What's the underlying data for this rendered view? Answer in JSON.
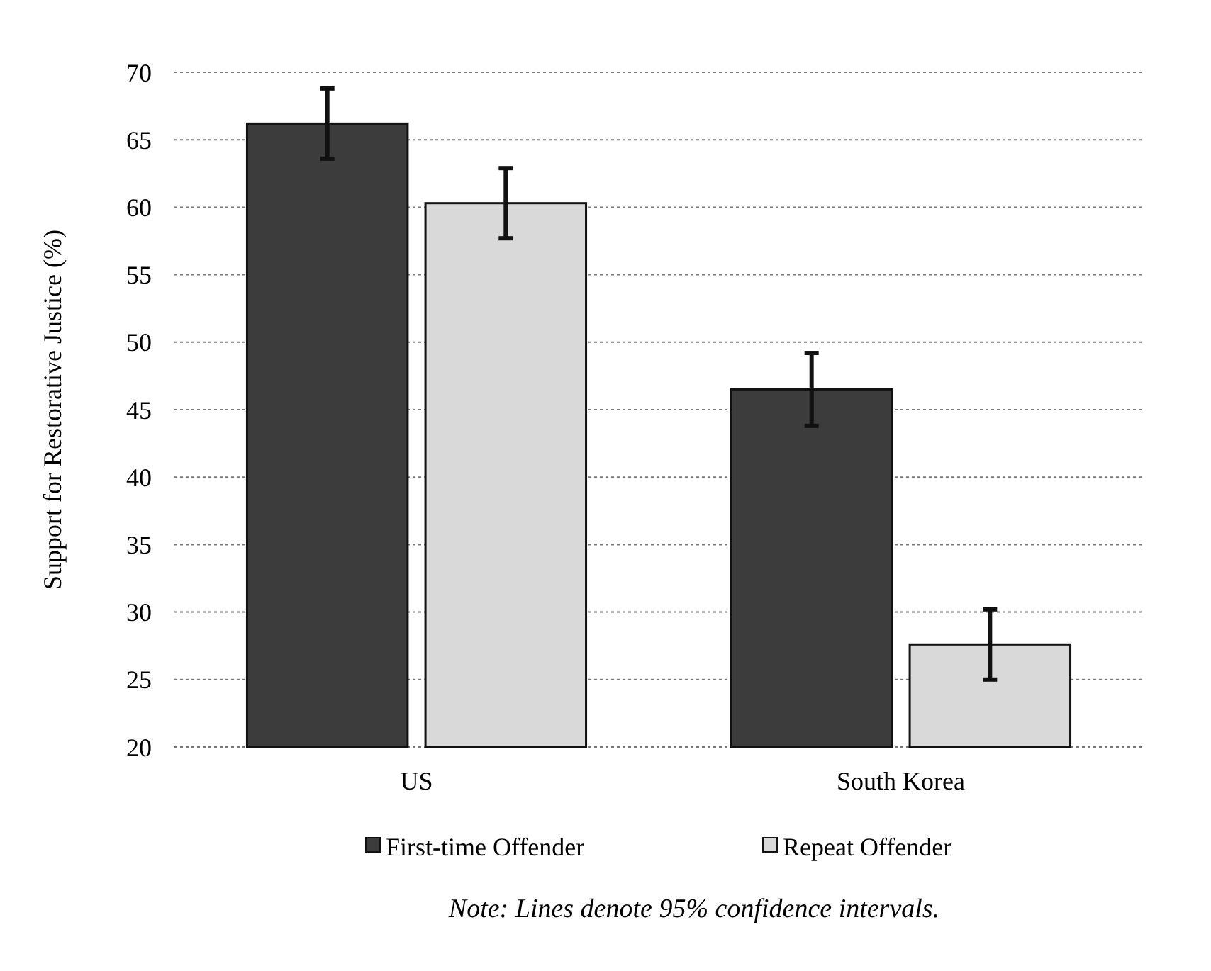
{
  "chart_data": {
    "type": "bar",
    "ylabel": "Support for Restorative Justice (%)",
    "categories": [
      "US",
      "South Korea"
    ],
    "series": [
      {
        "name": "First-time Offender",
        "color": "#3c3c3c",
        "values": [
          66.2,
          46.5
        ],
        "errors": [
          2.6,
          2.7
        ]
      },
      {
        "name": "Repeat Offender",
        "color": "#d9d9d9",
        "values": [
          60.3,
          27.6
        ],
        "errors": [
          2.6,
          2.6
        ]
      }
    ],
    "ylim": [
      20,
      70
    ],
    "yticks": [
      20,
      25,
      30,
      35,
      40,
      45,
      50,
      55,
      60,
      65,
      70
    ],
    "grid": "y",
    "legend": "bottom",
    "annotations": [
      "Note: Lines denote 95% confidence intervals."
    ]
  }
}
